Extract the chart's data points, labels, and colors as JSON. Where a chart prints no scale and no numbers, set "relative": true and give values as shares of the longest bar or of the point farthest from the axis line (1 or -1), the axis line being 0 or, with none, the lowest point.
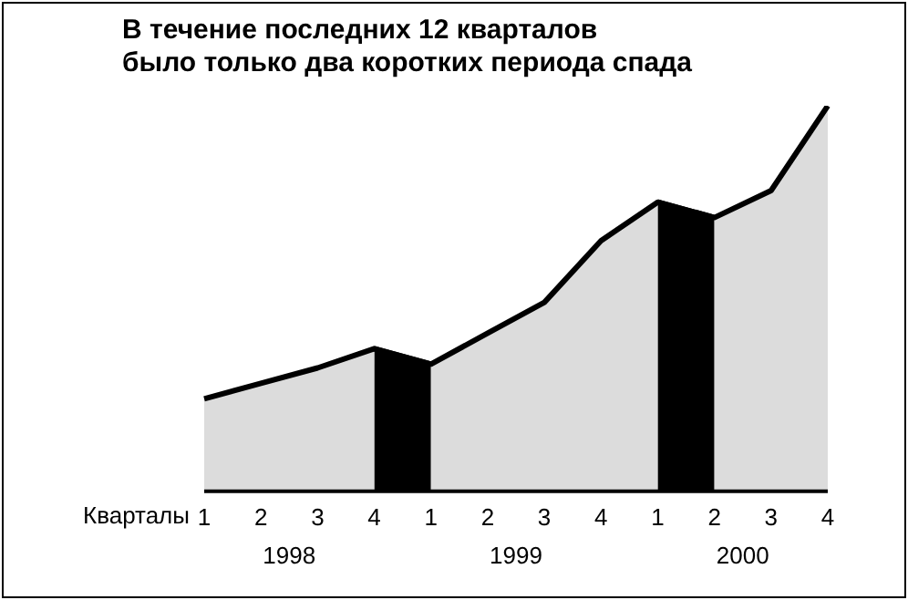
{
  "chart_data": {
    "type": "area",
    "title": "В течение последних 12 кварталов\nбыло только два коротких периода спада",
    "xlabel": "Кварталы",
    "categories": [
      "1",
      "2",
      "3",
      "4",
      "1",
      "2",
      "3",
      "4",
      "1",
      "2",
      "3",
      "4"
    ],
    "relative": true,
    "series": [
      {
        "color": "#dcdcdc",
        "values": [
          0.24,
          0.28,
          0.32,
          0.37,
          0.33,
          0.41,
          0.49,
          0.65,
          0.75,
          0.71,
          0.78,
          1
        ]
      },
      {
        "color": "#000000",
        "values": [
          null,
          null,
          null,
          0.37,
          0.33,
          null,
          null,
          null,
          0.75,
          0.71,
          null,
          null
        ]
      }
    ],
    "annotations": [
      "1998",
      "1999",
      "2000"
    ],
    "grid": false,
    "legend": false
  }
}
